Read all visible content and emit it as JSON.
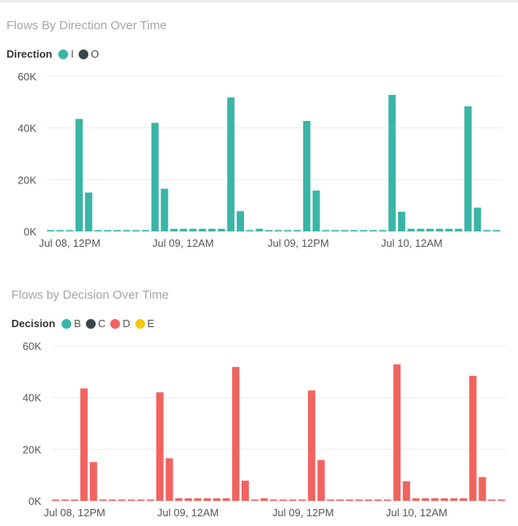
{
  "charts": [
    {
      "title": "Flows By Direction Over Time",
      "legend": {
        "name": "Direction",
        "items": [
          {
            "label": "I",
            "color": "#3ab5a7"
          },
          {
            "label": "O",
            "color": "#374649"
          }
        ]
      }
    },
    {
      "title": "Flows by Decision Over Time",
      "legend": {
        "name": "Decision",
        "items": [
          {
            "label": "B",
            "color": "#3ab5a7"
          },
          {
            "label": "C",
            "color": "#374649"
          },
          {
            "label": "D",
            "color": "#f2635f"
          },
          {
            "label": "E",
            "color": "#f2c80f"
          }
        ]
      }
    }
  ],
  "chart_data": [
    {
      "type": "bar",
      "title": "Flows By Direction Over Time",
      "legend_title": "Direction",
      "ylim": [
        0,
        60000
      ],
      "yticks": [
        "0K",
        "20K",
        "40K",
        "60K"
      ],
      "xtick_labels": [
        "Jul 08, 12PM",
        "Jul 09, 12AM",
        "Jul 09, 12PM",
        "Jul 10, 12AM"
      ],
      "series": [
        {
          "name": "I",
          "color": "#3ab5a7",
          "values": [
            500,
            500,
            500,
            43500,
            15000,
            500,
            500,
            500,
            500,
            500,
            500,
            42000,
            16500,
            1000,
            1000,
            1000,
            1000,
            1000,
            1000,
            51800,
            7800,
            500,
            1000,
            500,
            500,
            500,
            500,
            42700,
            15800,
            500,
            500,
            500,
            500,
            500,
            500,
            500,
            52800,
            7600,
            1000,
            1000,
            1000,
            1000,
            1000,
            1000,
            48400,
            9200,
            500,
            500
          ]
        }
      ]
    },
    {
      "type": "bar",
      "title": "Flows by Decision Over Time",
      "legend_title": "Decision",
      "ylim": [
        0,
        60000
      ],
      "yticks": [
        "0K",
        "20K",
        "40K",
        "60K"
      ],
      "xtick_labels": [
        "Jul 08, 12PM",
        "Jul 09, 12AM",
        "Jul 09, 12PM",
        "Jul 10, 12AM"
      ],
      "series": [
        {
          "name": "D",
          "color": "#f2635f",
          "values": [
            500,
            500,
            500,
            43500,
            15000,
            500,
            500,
            500,
            500,
            500,
            500,
            42000,
            16500,
            1000,
            1000,
            1000,
            1000,
            1000,
            1000,
            51800,
            7800,
            500,
            1000,
            500,
            500,
            500,
            500,
            42700,
            15800,
            500,
            500,
            500,
            500,
            500,
            500,
            500,
            52800,
            7600,
            1000,
            1000,
            1000,
            1000,
            1000,
            1000,
            48400,
            9200,
            500,
            500
          ]
        }
      ]
    }
  ]
}
